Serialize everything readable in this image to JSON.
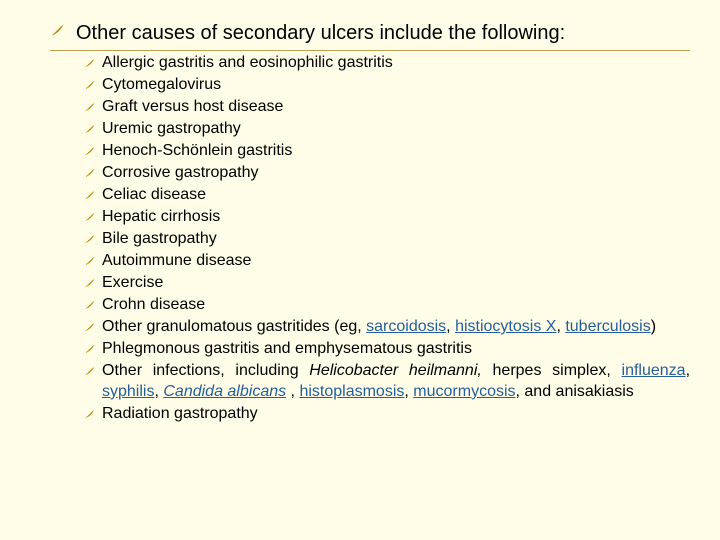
{
  "accent_color": "#b8860b",
  "link_color": "#245f9c",
  "background_color": "#fffde7",
  "main_bullet": "Other causes of secondary ulcers include the following:",
  "sub_items": [
    {
      "html": "Allergic gastritis and eosinophilic gastritis"
    },
    {
      "html": "Cytomegalovirus"
    },
    {
      "html": "Graft versus host disease"
    },
    {
      "html": "Uremic gastropathy"
    },
    {
      "html": "Henoch-Schönlein gastritis"
    },
    {
      "html": "Corrosive gastropathy"
    },
    {
      "html": "Celiac disease"
    },
    {
      "html": "Hepatic cirrhosis"
    },
    {
      "html": "Bile gastropathy"
    },
    {
      "html": "Autoimmune disease"
    },
    {
      "html": "Exercise"
    },
    {
      "html": "Crohn disease"
    },
    {
      "html": "Other granulomatous gastritides (eg, <span class=\"link\">sarcoidosis</span>, <span class=\"link\">histiocytosis X</span>, <span class=\"link\">tuberculosis</span>)"
    },
    {
      "html": "Phlegmonous gastritis and emphysematous gastritis"
    },
    {
      "html": "Other infections, including <span class=\"italic\">Helicobacter heilmanni,</span> herpes simplex, <span class=\"link\">influenza</span>, <span class=\"link\">syphilis</span>, <span class=\"italic link\">Candida albicans</span> , <span class=\"link\">histoplasmosis</span>, <span class=\"link\">mucormycosis</span>, and anisakiasis"
    },
    {
      "html": "Radiation gastropathy"
    }
  ]
}
